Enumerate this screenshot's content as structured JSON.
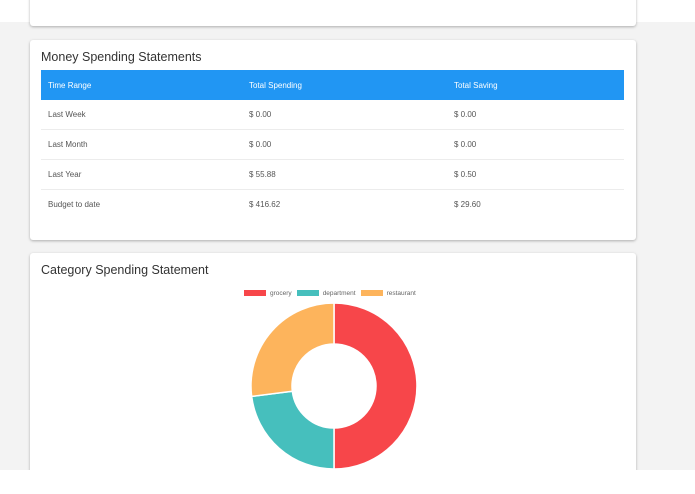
{
  "money_card": {
    "title": "Money Spending Statements",
    "columns": [
      "Time Range",
      "Total Spending",
      "Total Saving"
    ],
    "rows": [
      {
        "range": "Last Week",
        "spending": "$ 0.00",
        "saving": "$ 0.00"
      },
      {
        "range": "Last Month",
        "spending": "$ 0.00",
        "saving": "$ 0.00"
      },
      {
        "range": "Last Year",
        "spending": "$ 55.88",
        "saving": "$ 0.50"
      },
      {
        "range": "Budget to date",
        "spending": "$ 416.62",
        "saving": "$ 29.60"
      }
    ],
    "header_color": "#2196f3"
  },
  "category_card": {
    "title": "Category Spending Statement",
    "legend": [
      {
        "label": "grocery",
        "color": "#f7464a"
      },
      {
        "label": "department",
        "color": "#46bfbd"
      },
      {
        "label": "restaurant",
        "color": "#fdb45c"
      }
    ]
  },
  "chart_data": {
    "type": "pie",
    "variant": "doughnut",
    "title": "Category Spending Statement",
    "categories": [
      "grocery",
      "department",
      "restaurant"
    ],
    "values": [
      50,
      23,
      27
    ],
    "unit": "percent (estimated from arc angles)",
    "colors": [
      "#f7464a",
      "#46bfbd",
      "#fdb45c"
    ],
    "legend_position": "top"
  }
}
